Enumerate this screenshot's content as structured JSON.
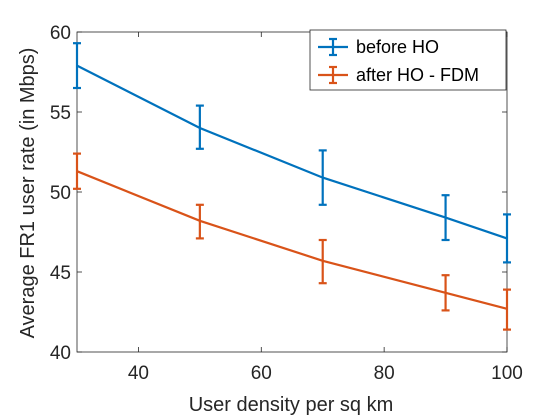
{
  "chart_data": {
    "type": "line",
    "xlabel": "User density per sq km",
    "ylabel": "Average FR1 user rate (in Mbps)",
    "xlim": [
      30,
      100
    ],
    "ylim": [
      40,
      60
    ],
    "xticks": [
      40,
      60,
      80,
      100
    ],
    "yticks": [
      40,
      45,
      50,
      55,
      60
    ],
    "grid": false,
    "legend_position": "top-right",
    "x": [
      30,
      50,
      70,
      90,
      100
    ],
    "series": [
      {
        "name": "before HO",
        "color": "#0072BD",
        "values": [
          57.9,
          54.0,
          50.9,
          48.4,
          47.1
        ],
        "error_low": [
          56.5,
          52.7,
          49.2,
          47.0,
          45.6
        ],
        "error_high": [
          59.3,
          55.4,
          52.6,
          49.8,
          48.6
        ]
      },
      {
        "name": "after HO - FDM",
        "color": "#D95319",
        "values": [
          51.3,
          48.2,
          45.7,
          43.7,
          42.7
        ],
        "error_low": [
          50.2,
          47.1,
          44.3,
          42.6,
          41.4
        ],
        "error_high": [
          52.4,
          49.2,
          47.0,
          44.8,
          43.9
        ]
      }
    ]
  }
}
